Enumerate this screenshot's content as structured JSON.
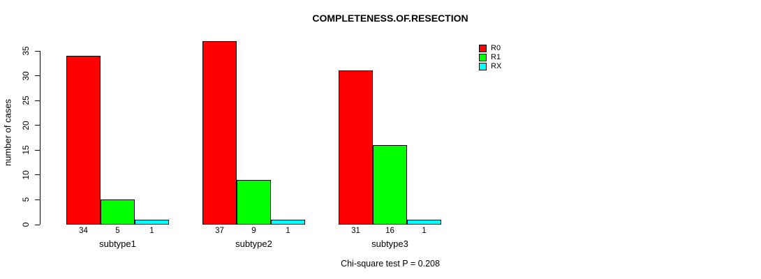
{
  "chart_data": {
    "type": "bar",
    "title": "COMPLETENESS.OF.RESECTION",
    "xlabel": "",
    "ylabel": "number of cases",
    "categories": [
      "subtype1",
      "subtype2",
      "subtype3"
    ],
    "series": [
      {
        "name": "R0",
        "color": "#ff0000",
        "values": [
          34,
          37,
          31
        ]
      },
      {
        "name": "R1",
        "color": "#00ff00",
        "values": [
          5,
          9,
          16
        ]
      },
      {
        "name": "RX",
        "color": "#00ffff",
        "values": [
          1,
          1,
          1
        ]
      }
    ],
    "ylim": [
      0,
      35
    ],
    "yticks": [
      0,
      5,
      10,
      15,
      20,
      25,
      30,
      35
    ],
    "grid": false,
    "legend_position": "top-right",
    "bar_border_color": "#000000",
    "annotation": "Chi-square test P = 0.208"
  }
}
